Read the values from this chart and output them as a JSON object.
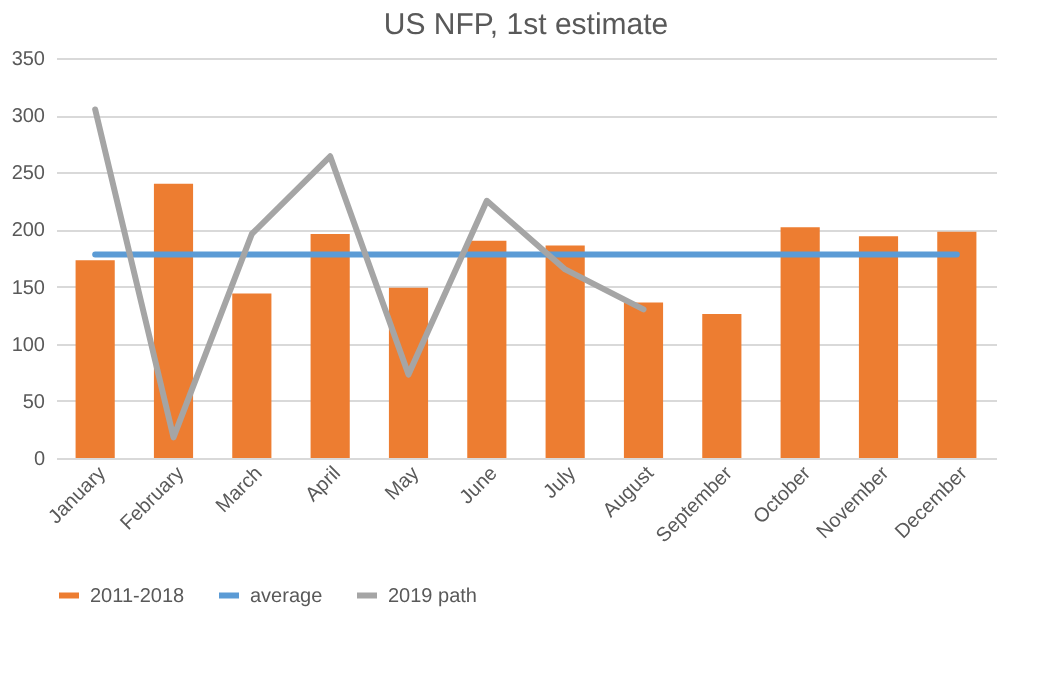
{
  "chart_data": {
    "type": "bar",
    "title": "US NFP, 1st estimate",
    "categories": [
      "January",
      "February",
      "March",
      "April",
      "May",
      "June",
      "July",
      "August",
      "September",
      "October",
      "November",
      "December"
    ],
    "series": [
      {
        "name": "2011-2018",
        "color": "#ed7d31",
        "values": [
          173,
          240,
          144,
          196,
          149,
          190,
          186,
          136,
          126,
          202,
          194,
          198
        ]
      },
      {
        "name": "average",
        "type": "line",
        "color": "#5b9bd5",
        "values": [
          178,
          178,
          178,
          178,
          178,
          178,
          178,
          178,
          178,
          178,
          178,
          178
        ]
      },
      {
        "name": "2019 path",
        "type": "line",
        "color": "#a5a5a5",
        "values": [
          305,
          18,
          196,
          264,
          73,
          225,
          165,
          130,
          null,
          null,
          null,
          null
        ]
      }
    ],
    "ylim": [
      0,
      350
    ],
    "yticks": [
      0,
      50,
      100,
      150,
      200,
      250,
      300,
      350
    ],
    "grid": "y",
    "legend": "bottom"
  }
}
